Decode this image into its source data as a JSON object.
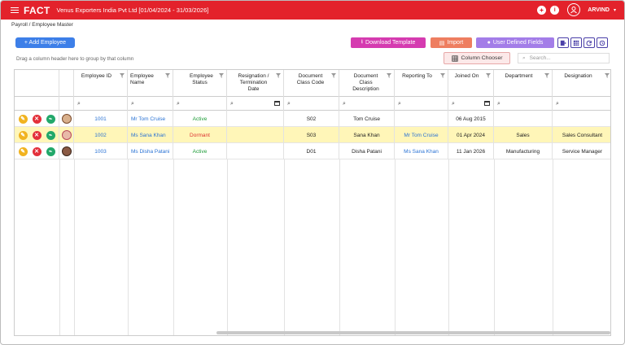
{
  "app": {
    "logo": "FACT",
    "company": "Venus Exporters India Pvt Ltd [01/04/2024 - 31/03/2026]",
    "user": "ARVIND"
  },
  "breadcrumb": "Payroll  /  Employee Master",
  "toolbar": {
    "add_label": "+ Add Employee",
    "download_label": "Download Template",
    "import_label": "Import",
    "udf_label": "User Defined Fields"
  },
  "grid": {
    "group_hint": "Drag a column header here to group by that column",
    "column_chooser": "Column Chooser",
    "search_placeholder": "Search...",
    "columns": {
      "employee_id": "Employee ID",
      "employee_name": "Employee Name",
      "employee_status": "Employee Status",
      "resignation_date": "Resignation / Termination Date",
      "doc_class_code": "Document Class Code",
      "doc_class_desc": "Document Class Description",
      "reporting_to": "Reporting To",
      "joined_on": "Joined On",
      "department": "Department",
      "designation": "Designation"
    },
    "rows": [
      {
        "id": "1001",
        "name": "Mr Tom Cruise",
        "status": "Active",
        "resignation": "",
        "doc_code": "S02",
        "doc_desc": "Tom Cruise",
        "reporting_to": "",
        "joined_on": "06 Aug 2015",
        "department": "",
        "designation": ""
      },
      {
        "id": "1002",
        "name": "Ms Sana Khan",
        "status": "Dormant",
        "resignation": "",
        "doc_code": "S03",
        "doc_desc": "Sana Khan",
        "reporting_to": "Mr Tom Cruise",
        "joined_on": "01 Apr 2024",
        "department": "Sales",
        "designation": "Sales Consultant"
      },
      {
        "id": "1003",
        "name": "Ms Disha Patani",
        "status": "Active",
        "resignation": "",
        "doc_code": "D01",
        "doc_desc": "Disha Patani",
        "reporting_to": "Ms Sana Khan",
        "joined_on": "11 Jan 2026",
        "department": "Manufacturing",
        "designation": "Service Manager"
      }
    ]
  },
  "colors": {
    "brand": "#e3222b",
    "primary": "#3d7fe8",
    "active": "#1e9c38",
    "dormant": "#dd3333",
    "selected_row": "#fff6b8"
  }
}
